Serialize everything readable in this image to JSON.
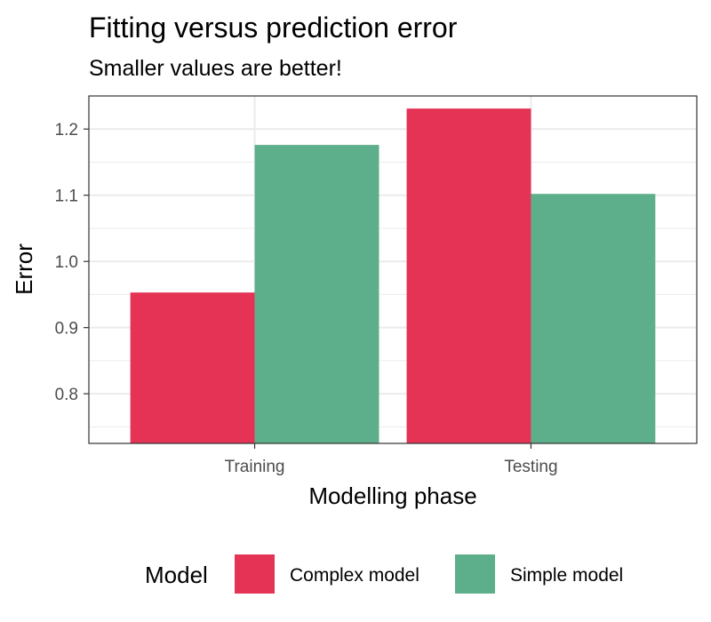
{
  "chart_data": {
    "type": "bar",
    "title": "Fitting versus prediction error",
    "subtitle": "Smaller values are better!",
    "xlabel": "Modelling phase",
    "ylabel": "Error",
    "categories": [
      "Training",
      "Testing"
    ],
    "series": [
      {
        "name": "Complex model",
        "values": [
          0.953,
          1.231
        ],
        "color": "#e43355"
      },
      {
        "name": "Simple model",
        "values": [
          1.176,
          1.102
        ],
        "color": "#5caf8a"
      }
    ],
    "ylim": [
      0.725,
      1.25
    ],
    "yticks": [
      0.8,
      0.9,
      1.0,
      1.1,
      1.2
    ],
    "ytick_labels": [
      "0.8",
      "0.9",
      "1.0",
      "1.1",
      "1.2"
    ],
    "grid": true,
    "legend": {
      "title": "Model",
      "position": "bottom"
    }
  }
}
